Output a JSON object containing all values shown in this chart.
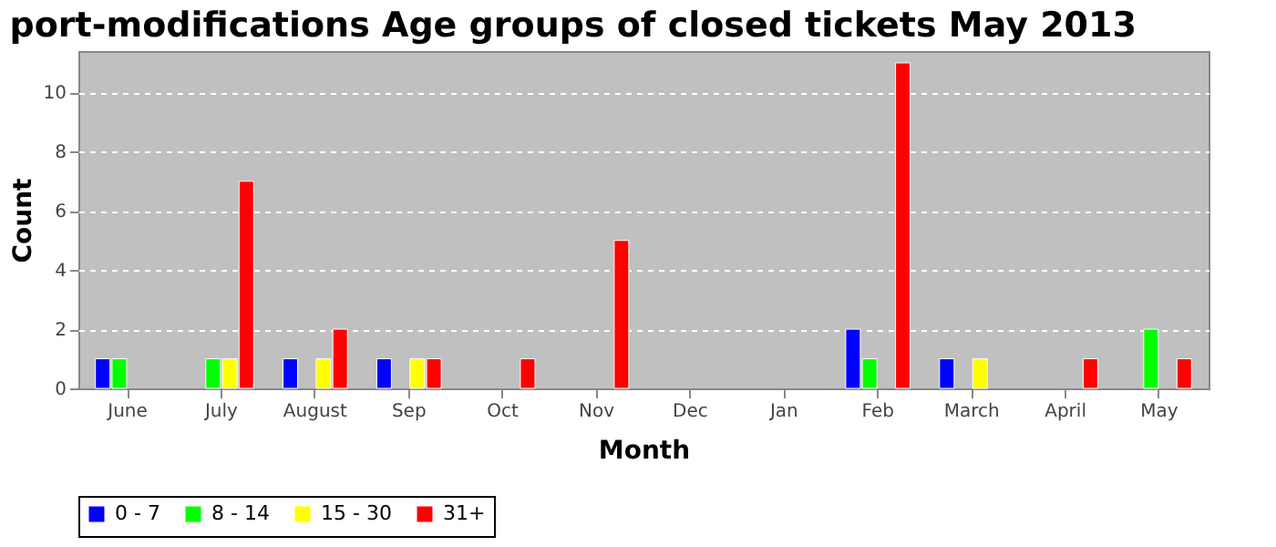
{
  "chart_data": {
    "type": "bar",
    "title": "port-modifications Age groups of closed tickets May 2013",
    "xlabel": "Month",
    "ylabel": "Count",
    "categories": [
      "June",
      "July",
      "August",
      "Sep",
      "Oct",
      "Nov",
      "Dec",
      "Jan",
      "Feb",
      "March",
      "April",
      "May"
    ],
    "series": [
      {
        "name": "0 - 7",
        "color": "#0000ff",
        "values": [
          1,
          null,
          1,
          1,
          null,
          null,
          null,
          null,
          2,
          1,
          null,
          null
        ]
      },
      {
        "name": "8 - 14",
        "color": "#00ff00",
        "values": [
          1,
          1,
          null,
          null,
          null,
          null,
          null,
          null,
          1,
          null,
          null,
          2
        ]
      },
      {
        "name": "15 - 30",
        "color": "#ffff00",
        "values": [
          null,
          1,
          1,
          1,
          null,
          null,
          null,
          null,
          null,
          1,
          null,
          null
        ]
      },
      {
        "name": "31+",
        "color": "#ff0000",
        "values": [
          null,
          7,
          2,
          1,
          1,
          5,
          null,
          null,
          11,
          null,
          1,
          1
        ]
      }
    ],
    "ylim": [
      0,
      11.4
    ],
    "yticks": [
      0,
      2,
      4,
      6,
      8,
      10
    ],
    "grid": "y",
    "legend": "bottom"
  }
}
